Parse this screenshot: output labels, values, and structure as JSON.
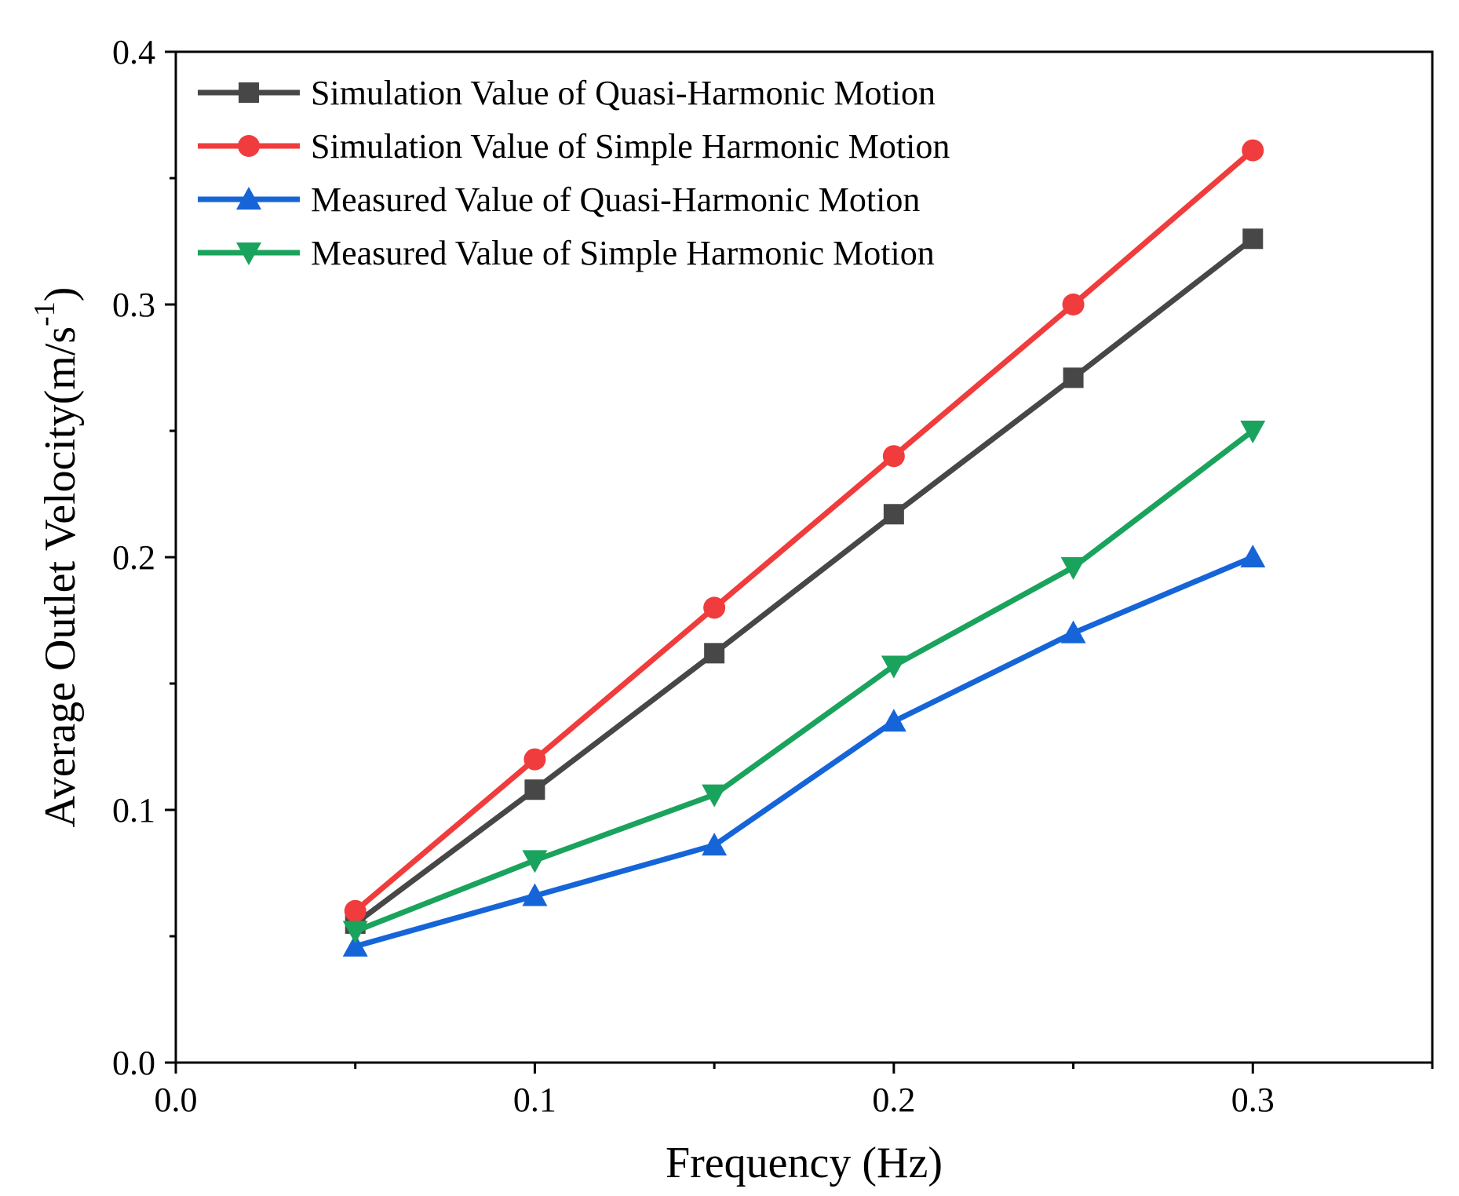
{
  "chart_data": {
    "type": "line",
    "title": "",
    "xlabel": "Frequency (Hz)",
    "ylabel": "Average Outlet Velocity(m/s",
    "ylabel_superscript": "-1",
    "ylabel_suffix": ")",
    "xlim": [
      0.0,
      0.35
    ],
    "ylim": [
      0.0,
      0.4
    ],
    "x_ticks": [
      "0.0",
      "0.1",
      "0.2",
      "0.3"
    ],
    "x_tick_values": [
      0.0,
      0.1,
      0.2,
      0.3
    ],
    "y_ticks": [
      "0.0",
      "0.1",
      "0.2",
      "0.3",
      "0.4"
    ],
    "y_tick_values": [
      0.0,
      0.1,
      0.2,
      0.3,
      0.4
    ],
    "grid": false,
    "legend_position": "top-left",
    "x": [
      0.05,
      0.1,
      0.15,
      0.2,
      0.25,
      0.3
    ],
    "series": [
      {
        "name": "Simulation Value of Quasi-Harmonic Motion",
        "values": [
          0.055,
          0.108,
          0.162,
          0.217,
          0.271,
          0.326
        ],
        "color": "#474747",
        "marker": "square"
      },
      {
        "name": "Simulation Value of Simple Harmonic Motion",
        "values": [
          0.06,
          0.12,
          0.18,
          0.24,
          0.3,
          0.361
        ],
        "color": "#f03c3c",
        "marker": "circle"
      },
      {
        "name": "Measured Value of Quasi-Harmonic Motion",
        "values": [
          0.046,
          0.066,
          0.086,
          0.135,
          0.17,
          0.2
        ],
        "color": "#1565d8",
        "marker": "triangle-up"
      },
      {
        "name": "Measured Value of Simple Harmonic Motion",
        "values": [
          0.052,
          0.08,
          0.106,
          0.157,
          0.196,
          0.25
        ],
        "color": "#1aa35c",
        "marker": "triangle-down"
      }
    ]
  }
}
